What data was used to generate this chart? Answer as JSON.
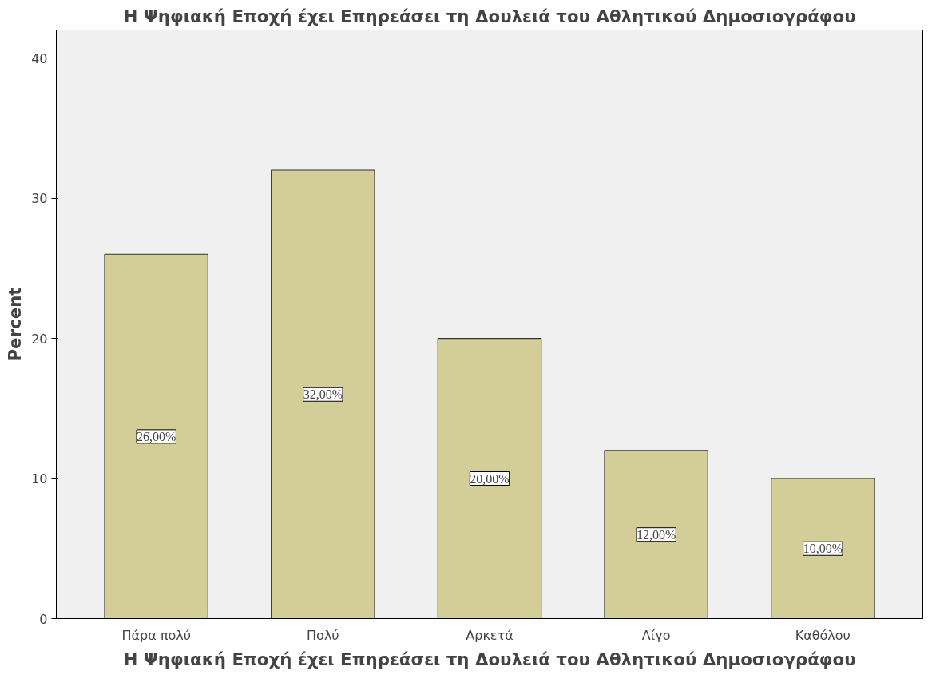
{
  "chart_data": {
    "type": "bar",
    "title": "Η Ψηφιακή Εποχή έχει Επηρεάσει τη Δουλειά του Αθλητικού Δημοσιογράφου",
    "xlabel": "Η Ψηφιακή Εποχή έχει Επηρεάσει τη Δουλειά του Αθλητικού Δημοσιογράφου",
    "ylabel": "Percent",
    "categories": [
      "Πάρα πολύ",
      "Πολύ",
      "Αρκετά",
      "Λίγο",
      "Καθόλου"
    ],
    "values": [
      26,
      32,
      20,
      12,
      10
    ],
    "value_labels": [
      "26,00%",
      "32,00%",
      "20,00%",
      "12,00%",
      "10,00%"
    ],
    "color": "#d3ce97",
    "ylim": [
      0,
      42
    ],
    "yticks": [
      0,
      10,
      20,
      30,
      40
    ],
    "grid": false
  }
}
